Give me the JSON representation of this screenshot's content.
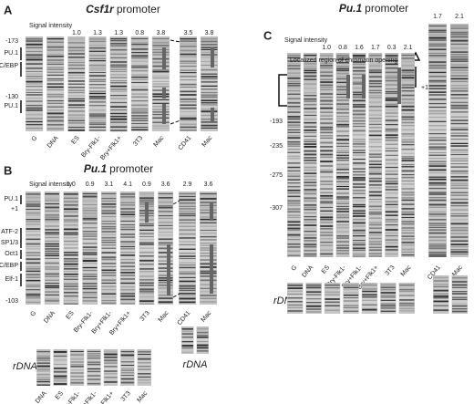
{
  "panels": [
    {
      "letter": "A",
      "gene": "Csf1r",
      "suffix": "promoter",
      "intensity_label": "Signal intensity",
      "intensities": [
        "1.0",
        "1.3",
        "1.3",
        "0.8",
        "3.8"
      ],
      "side_intensities": [
        "3.5",
        "3.8"
      ],
      "lanes": [
        "G",
        "DNA",
        "ES",
        "Bry-Flk1-",
        "Bry+Flk1+",
        "3T3",
        "Mac"
      ],
      "side_lanes": [
        "CD41",
        "Mac"
      ],
      "markers": [
        "-173",
        "PU.1",
        "C/EBP",
        "-130",
        "PU.1"
      ]
    },
    {
      "letter": "B",
      "gene": "Pu.1",
      "suffix": "promoter",
      "intensity_label": "Signal intensity",
      "intensities": [
        "1.0",
        "0.9",
        "3.1",
        "4.1",
        "0.9",
        "3.6"
      ],
      "side_intensities": [
        "2.9",
        "3.6"
      ],
      "lanes": [
        "G",
        "DNA",
        "ES",
        "Bry-Flk1-",
        "Bry+Flk1-",
        "Bry+Flk1+",
        "3T3",
        "Mac"
      ],
      "side_lanes": [
        "CD41",
        "Mac"
      ],
      "markers": [
        "PU.1",
        "+1",
        "ATF-2",
        "SP1/3",
        "Oct1",
        "C/EBP",
        "Elf-1",
        "-103"
      ],
      "rdna_label": "rDNA",
      "rdna_lanes": [
        "DNA",
        "ES",
        "Bry-Flk1-",
        "Bry+Flk1-",
        "Bry+Flk1+",
        "3T3",
        "Mac"
      ],
      "side_rdna_label": "rDNA"
    },
    {
      "letter": "C",
      "gene": "Pu.1",
      "suffix": "promoter",
      "intensity_label": "Signal intensity",
      "intensities": [
        "1.0",
        "0.8",
        "1.6",
        "1.7",
        "0.3",
        "2.1"
      ],
      "side_intensities": [
        "1.7",
        "2.1"
      ],
      "lanes": [
        "G",
        "DNA",
        "ES",
        "Bry-Flk1-",
        "Bry+Flk1-",
        "Bry+Flk1+",
        "3T3",
        "Mac"
      ],
      "side_lanes": [
        "CD41",
        "Mac"
      ],
      "annotation": "Localized region of chromatin opening",
      "plus_one": "+1",
      "markers": [
        "-193",
        "-235",
        "-275",
        "-307"
      ],
      "rdna_label": "rDNA"
    }
  ]
}
